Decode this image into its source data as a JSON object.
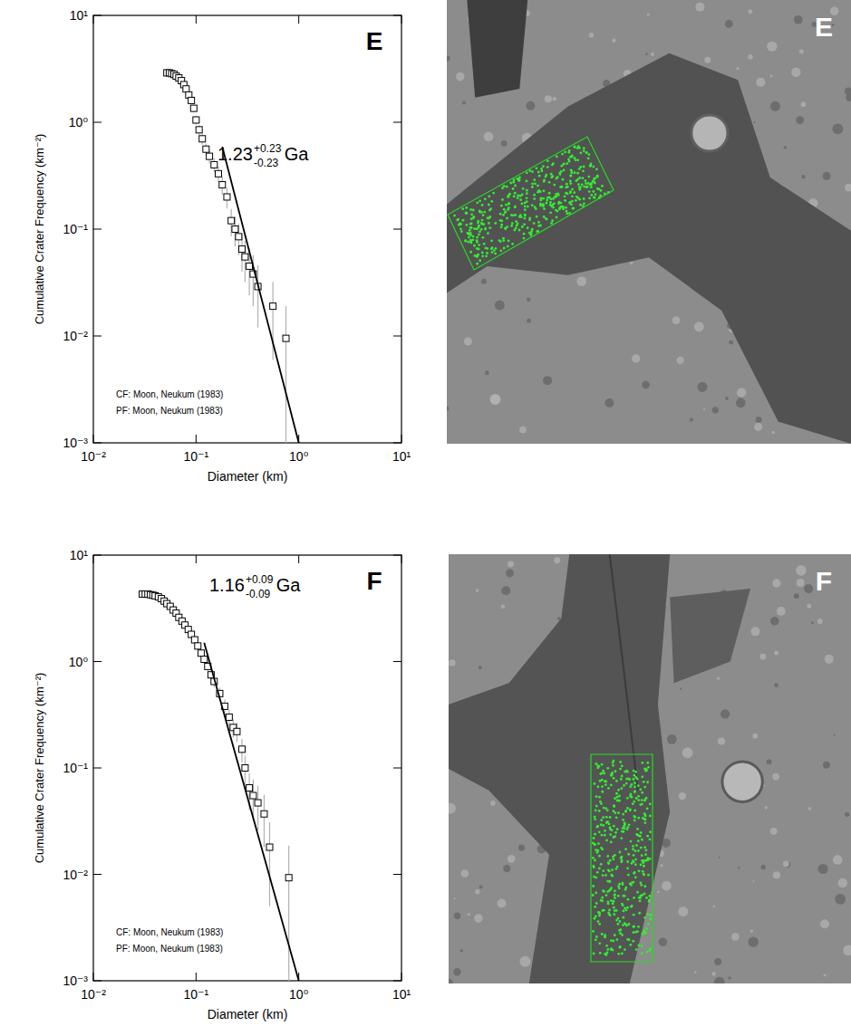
{
  "chart_data": [
    {
      "type": "scatter",
      "title": "E",
      "image_label": "E",
      "log": true,
      "x_label": "Diameter (km)",
      "y_label": "Cumulative Crater Frequency (km⁻²)",
      "age_label": {
        "text": "1.23",
        "upper": "+0.23",
        "lower": "-0.23",
        "unit": "Ga"
      },
      "notes": [
        "CF: Moon, Neukum (1983)",
        "PF: Moon, Neukum (1983)"
      ],
      "xlim": [
        0.01,
        10
      ],
      "ylim": [
        0.001,
        10
      ],
      "xticks": [
        {
          "value": 0.01,
          "label": "10⁻²"
        },
        {
          "value": 0.1,
          "label": "10⁻¹"
        },
        {
          "value": 1,
          "label": "10⁰"
        },
        {
          "value": 10,
          "label": "10¹"
        }
      ],
      "yticks": [
        {
          "value": 0.001,
          "label": "10⁻³"
        },
        {
          "value": 0.01,
          "label": "10⁻²"
        },
        {
          "value": 0.1,
          "label": "10⁻¹"
        },
        {
          "value": 1,
          "label": "10⁰"
        },
        {
          "value": 10,
          "label": "10¹"
        }
      ],
      "series": [
        {
          "type": "scatter",
          "marker": "square",
          "color": "#000000",
          "x": [
            0.052,
            0.055,
            0.058,
            0.061,
            0.064,
            0.068,
            0.072,
            0.076,
            0.08,
            0.085,
            0.09,
            0.095,
            0.1,
            0.107,
            0.115,
            0.125,
            0.135,
            0.15,
            0.165,
            0.18,
            0.2,
            0.22,
            0.24,
            0.26,
            0.28,
            0.3,
            0.33,
            0.36,
            0.4,
            0.56,
            0.75
          ],
          "values": [
            2.9,
            2.9,
            2.85,
            2.8,
            2.7,
            2.6,
            2.45,
            2.25,
            2.05,
            1.8,
            1.6,
            1.35,
            1.05,
            0.85,
            0.7,
            0.56,
            0.48,
            0.4,
            0.33,
            0.26,
            0.2,
            0.12,
            0.1,
            0.085,
            0.065,
            0.055,
            0.045,
            0.038,
            0.029,
            0.019,
            0.0095
          ],
          "errors": [
            0.166,
            0.166,
            0.165,
            0.163,
            0.16,
            0.157,
            0.153,
            0.146,
            0.14,
            0.131,
            0.123,
            0.113,
            0.1,
            0.09,
            0.082,
            0.073,
            0.068,
            0.062,
            0.056,
            0.05,
            0.044,
            0.034,
            0.031,
            0.028,
            0.025,
            0.023,
            0.021,
            0.019,
            0.017,
            0.013,
            0.0095
          ]
        },
        {
          "type": "line",
          "line_style": "solid",
          "color": "#000000",
          "x": [
            0.18,
            1.0
          ],
          "values": [
            0.59,
            0.001
          ]
        }
      ]
    },
    {
      "type": "scatter",
      "title": "F",
      "image_label": "F",
      "log": true,
      "x_label": "Diameter (km)",
      "y_label": "Cumulative Crater Frequency (km⁻²)",
      "age_label": {
        "text": "1.16",
        "upper": "+0.09",
        "lower": "-0.09",
        "unit": "Ga"
      },
      "notes": [
        "CF: Moon, Neukum (1983)",
        "PF: Moon, Neukum (1983)"
      ],
      "xlim": [
        0.01,
        10
      ],
      "ylim": [
        0.001,
        10
      ],
      "xticks": [
        {
          "value": 0.01,
          "label": "10⁻²"
        },
        {
          "value": 0.1,
          "label": "10⁻¹"
        },
        {
          "value": 1,
          "label": "10⁰"
        },
        {
          "value": 10,
          "label": "10¹"
        }
      ],
      "yticks": [
        {
          "value": 0.001,
          "label": "10⁻³"
        },
        {
          "value": 0.01,
          "label": "10⁻²"
        },
        {
          "value": 0.1,
          "label": "10⁻¹"
        },
        {
          "value": 1,
          "label": "10⁰"
        },
        {
          "value": 10,
          "label": "10¹"
        }
      ],
      "series": [
        {
          "type": "scatter",
          "marker": "square",
          "color": "#000000",
          "x": [
            0.03,
            0.032,
            0.034,
            0.036,
            0.038,
            0.04,
            0.043,
            0.046,
            0.049,
            0.052,
            0.056,
            0.06,
            0.064,
            0.068,
            0.073,
            0.078,
            0.084,
            0.09,
            0.097,
            0.104,
            0.112,
            0.12,
            0.13,
            0.14,
            0.15,
            0.17,
            0.19,
            0.21,
            0.23,
            0.25,
            0.28,
            0.3,
            0.33,
            0.36,
            0.4,
            0.46,
            0.52,
            0.8
          ],
          "values": [
            4.3,
            4.3,
            4.3,
            4.25,
            4.2,
            4.15,
            4.05,
            3.9,
            3.7,
            3.5,
            3.3,
            3.05,
            2.85,
            2.6,
            2.4,
            2.2,
            2.0,
            1.8,
            1.6,
            1.4,
            1.2,
            1.05,
            0.9,
            0.75,
            0.65,
            0.5,
            0.38,
            0.3,
            0.24,
            0.22,
            0.15,
            0.1,
            0.065,
            0.055,
            0.047,
            0.037,
            0.018,
            0.0093
          ],
          "errors": [
            0.2,
            0.2,
            0.2,
            0.198,
            0.197,
            0.196,
            0.194,
            0.19,
            0.185,
            0.18,
            0.175,
            0.168,
            0.162,
            0.155,
            0.149,
            0.143,
            0.136,
            0.129,
            0.122,
            0.114,
            0.105,
            0.099,
            0.091,
            0.083,
            0.078,
            0.068,
            0.059,
            0.053,
            0.047,
            0.045,
            0.037,
            0.03,
            0.025,
            0.023,
            0.021,
            0.019,
            0.013,
            0.0093
          ]
        },
        {
          "type": "line",
          "line_style": "solid",
          "color": "#000000",
          "x": [
            0.12,
            1.0
          ],
          "values": [
            1.5,
            0.001
          ]
        }
      ]
    }
  ]
}
